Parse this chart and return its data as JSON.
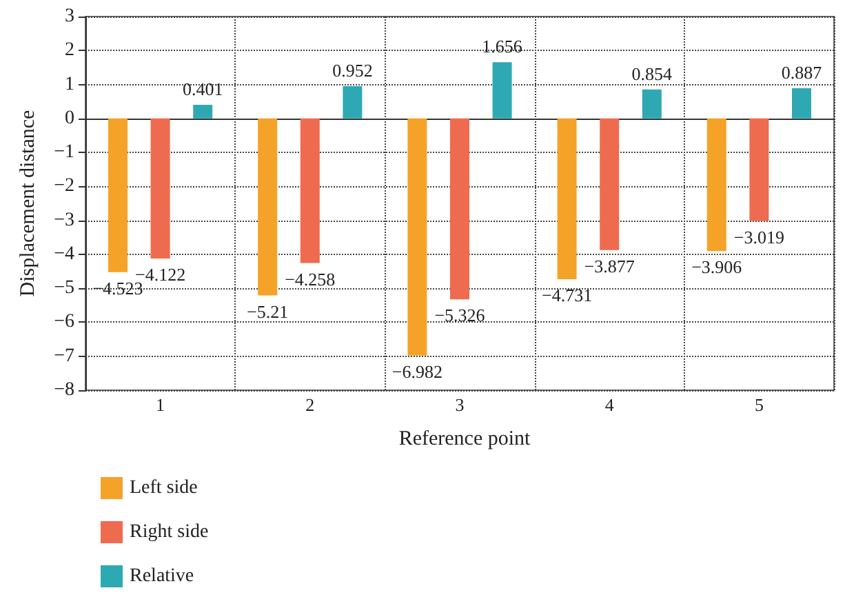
{
  "chart_data": {
    "type": "bar",
    "xlabel": "Reference point",
    "ylabel": "Displacement distance",
    "categories": [
      "1",
      "2",
      "3",
      "4",
      "5"
    ],
    "series": [
      {
        "name": "Left side",
        "color": "#f5a229",
        "values": [
          -4.523,
          -5.21,
          -6.982,
          -4.731,
          -3.906
        ]
      },
      {
        "name": "Right side",
        "color": "#ef6b4f",
        "values": [
          -4.122,
          -4.258,
          -5.326,
          -3.877,
          -3.019
        ]
      },
      {
        "name": "Relative",
        "color": "#2ea9b3",
        "values": [
          0.401,
          0.952,
          1.656,
          0.854,
          0.887
        ]
      }
    ],
    "ylim": [
      -8,
      3
    ],
    "yticks": [
      -8,
      -7,
      -6,
      -5,
      -4,
      -3,
      -2,
      -1,
      0,
      1,
      2,
      3
    ],
    "grid": true,
    "legend": "bottom left",
    "data_labels": true
  }
}
